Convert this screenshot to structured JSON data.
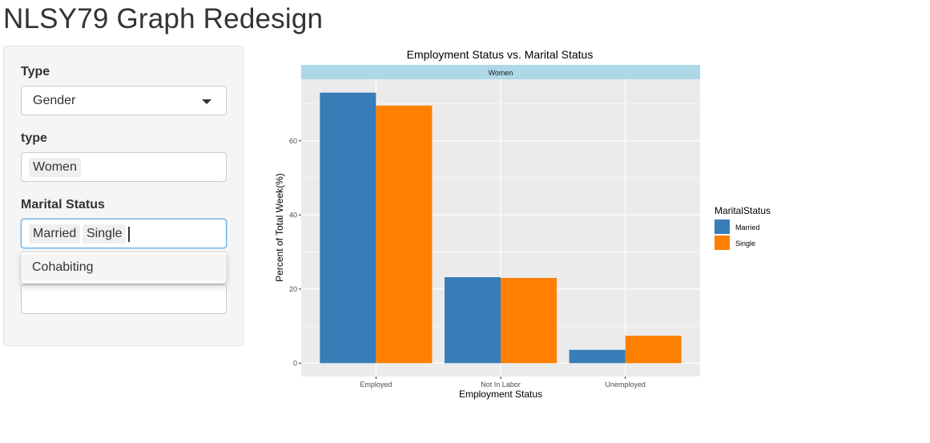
{
  "page": {
    "title": "NLSY79 Graph Redesign"
  },
  "sidebar": {
    "type_select": {
      "label": "Type",
      "value": "Gender"
    },
    "type_input": {
      "label": "type",
      "chips": [
        "Women"
      ]
    },
    "marital_input": {
      "label": "Marital Status",
      "chips": [
        "Married",
        "Single"
      ],
      "dropdown_options": [
        "Cohabiting"
      ]
    }
  },
  "chart_data": {
    "type": "bar",
    "title": "Employment Status vs. Marital Status",
    "facet": "Women",
    "xlabel": "Employment Status",
    "ylabel": "Percent of Total Week(%)",
    "categories": [
      "Employed",
      "Not In Labor",
      "Unemployed"
    ],
    "series": [
      {
        "name": "Married",
        "values": [
          73.0,
          23.2,
          3.6
        ],
        "color": "#377EB8"
      },
      {
        "name": "Single",
        "values": [
          69.5,
          23.0,
          7.4
        ],
        "color": "#FF7F00"
      }
    ],
    "yticks": [
      0,
      20,
      40,
      60
    ],
    "ylim": [
      -3.6,
      76.6
    ],
    "legend": {
      "title": "MaritalStatus",
      "position": "right"
    },
    "panel_background": "#EBEBEB",
    "strip_background": "#ADD8E6",
    "grid": true
  }
}
